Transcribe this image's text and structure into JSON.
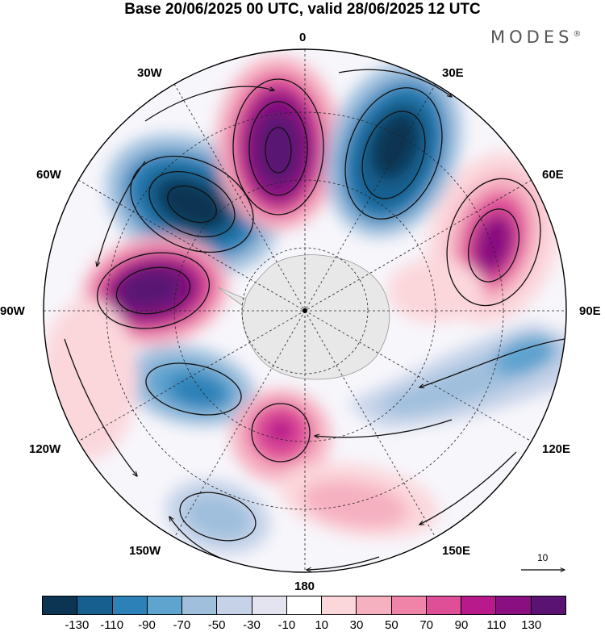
{
  "title": "Base 20/06/2025 00 UTC, valid 28/06/2025 12 UTC",
  "brand": {
    "name": "MODES",
    "mark": "®"
  },
  "longitude_labels": {
    "top": "0",
    "bottom": "180",
    "left": "90W",
    "right": "90E",
    "upper_left_1": "30W",
    "upper_left_2": "60W",
    "upper_right_1": "30E",
    "upper_right_2": "60E",
    "lower_left_1": "120W",
    "lower_left_2": "150W",
    "lower_right_1": "120E",
    "lower_right_2": "150E"
  },
  "reference_vector": {
    "label": "10"
  },
  "colorbar": {
    "colors": [
      "#0b3552",
      "#175f8e",
      "#2b81b8",
      "#5fa3cf",
      "#9fbfdd",
      "#c5d2e8",
      "#e4e3f0",
      "#ffffff",
      "#fbd7dc",
      "#f6b1c1",
      "#f084a8",
      "#df4f98",
      "#b8198b",
      "#8a0f80",
      "#5a1273"
    ],
    "tick_labels": [
      "-130",
      "-110",
      "-90",
      "-70",
      "-50",
      "-30",
      "-10",
      "10",
      "30",
      "50",
      "70",
      "90",
      "110",
      "130"
    ]
  },
  "anomalies": [
    {
      "name": "neg-30W-60W",
      "value": -120
    },
    {
      "name": "pos-0-30W",
      "value": 120
    },
    {
      "name": "neg-0-30E",
      "value": -110
    },
    {
      "name": "pos-60E",
      "value": 110
    },
    {
      "name": "pos-90W",
      "value": 130
    },
    {
      "name": "neg-110W",
      "value": -80
    },
    {
      "name": "neg-100E",
      "value": -60
    },
    {
      "name": "pos-150W-180",
      "value": 90
    },
    {
      "name": "neg-150W",
      "value": -50
    },
    {
      "name": "pos-150E",
      "value": 50
    }
  ]
}
